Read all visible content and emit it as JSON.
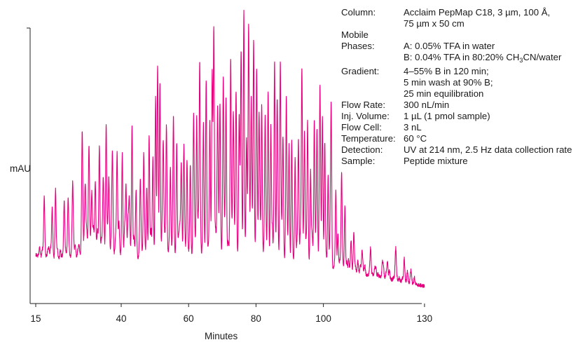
{
  "chart_data": {
    "type": "line",
    "xlabel": "Minutes",
    "ylabel": "mAU",
    "x_ticks": [
      "15",
      "40",
      "60",
      "80",
      "100",
      "130"
    ],
    "xlim": [
      15,
      130
    ],
    "grid": false,
    "series_color": "#e6007e",
    "baseline_points": [
      [
        15,
        24
      ],
      [
        18,
        22
      ],
      [
        22,
        21
      ],
      [
        26,
        23
      ],
      [
        30,
        24
      ],
      [
        35,
        25
      ],
      [
        40,
        24
      ],
      [
        45,
        22
      ],
      [
        50,
        22
      ],
      [
        55,
        23
      ],
      [
        60,
        23
      ],
      [
        65,
        24
      ],
      [
        70,
        23
      ],
      [
        75,
        22
      ],
      [
        80,
        22
      ],
      [
        85,
        21
      ],
      [
        90,
        20
      ],
      [
        95,
        18
      ],
      [
        100,
        17
      ],
      [
        105,
        15
      ],
      [
        110,
        13
      ],
      [
        115,
        11
      ],
      [
        120,
        9
      ],
      [
        125,
        7
      ],
      [
        130,
        5
      ]
    ],
    "peaks": [
      [
        17.5,
        33
      ],
      [
        19.8,
        28
      ],
      [
        20.8,
        41
      ],
      [
        23.3,
        31
      ],
      [
        24.5,
        33
      ],
      [
        25.8,
        43
      ],
      [
        28.6,
        56
      ],
      [
        29.5,
        40
      ],
      [
        30.6,
        58
      ],
      [
        31.4,
        37
      ],
      [
        32.4,
        41
      ],
      [
        33.6,
        60
      ],
      [
        34.7,
        36
      ],
      [
        35.6,
        66
      ],
      [
        36.4,
        44
      ],
      [
        37.4,
        52
      ],
      [
        38.8,
        57
      ],
      [
        40.3,
        48
      ],
      [
        41.4,
        40
      ],
      [
        42.4,
        33
      ],
      [
        43.2,
        67
      ],
      [
        44.4,
        39
      ],
      [
        45.7,
        44
      ],
      [
        46.7,
        58
      ],
      [
        47.6,
        43
      ],
      [
        48.3,
        61
      ],
      [
        49.4,
        44
      ],
      [
        50.2,
        93
      ],
      [
        50.8,
        106
      ],
      [
        51.5,
        94
      ],
      [
        52.5,
        60
      ],
      [
        53.4,
        71
      ],
      [
        54.6,
        46
      ],
      [
        55.5,
        84
      ],
      [
        56.5,
        49
      ],
      [
        57.8,
        52
      ],
      [
        58.6,
        64
      ],
      [
        59.5,
        48
      ],
      [
        60.5,
        54
      ],
      [
        61.5,
        70
      ],
      [
        62.4,
        79
      ],
      [
        63.3,
        118
      ],
      [
        64.4,
        71
      ],
      [
        65.2,
        98
      ],
      [
        66.3,
        76
      ],
      [
        67.0,
        107
      ],
      [
        67.5,
        127
      ],
      [
        68.6,
        83
      ],
      [
        69.3,
        92
      ],
      [
        70.3,
        106
      ],
      [
        71.1,
        85
      ],
      [
        72.5,
        117
      ],
      [
        73.3,
        71
      ],
      [
        74.1,
        95
      ],
      [
        75.0,
        84
      ],
      [
        75.6,
        114
      ],
      [
        76.4,
        148
      ],
      [
        77.2,
        70
      ],
      [
        77.8,
        134
      ],
      [
        78.6,
        93
      ],
      [
        79.3,
        126
      ],
      [
        80.2,
        100
      ],
      [
        80.9,
        84
      ],
      [
        81.7,
        93
      ],
      [
        82.7,
        80
      ],
      [
        83.6,
        90
      ],
      [
        84.4,
        78
      ],
      [
        85.5,
        115
      ],
      [
        86.3,
        80
      ],
      [
        87.2,
        103
      ],
      [
        88.0,
        72
      ],
      [
        89.0,
        97
      ],
      [
        89.8,
        69
      ],
      [
        90.6,
        58
      ],
      [
        91.6,
        58
      ],
      [
        92.6,
        64
      ],
      [
        93.6,
        112
      ],
      [
        94.4,
        79
      ],
      [
        95.3,
        71
      ],
      [
        96.2,
        56
      ],
      [
        97.3,
        88
      ],
      [
        98.1,
        73
      ],
      [
        99.0,
        100
      ],
      [
        99.7,
        80
      ],
      [
        100.4,
        60
      ],
      [
        101.4,
        54
      ],
      [
        102.3,
        91
      ],
      [
        103.7,
        30
      ],
      [
        105.4,
        51
      ],
      [
        106.4,
        33
      ],
      [
        108.2,
        19
      ],
      [
        109.0,
        17
      ],
      [
        111.5,
        8
      ],
      [
        114.0,
        11
      ],
      [
        117.5,
        8
      ],
      [
        119.0,
        10
      ],
      [
        121.5,
        16
      ],
      [
        124.0,
        11
      ],
      [
        127.0,
        4
      ]
    ],
    "spike_seeds": [
      31.5,
      44.8,
      60.8,
      70.7,
      81.3
    ]
  },
  "conditions": {
    "column_label": "Column:",
    "column_value_1": "Acclaim PepMap C18, 3 µm, 100 Å,",
    "column_value_2": "75 µm x 50 cm",
    "mobile_label": "Mobile",
    "phases_label": "Phases:",
    "phase_a": "A: 0.05% TFA in water",
    "phase_b_pre": "B: 0.04% TFA in 80:20% CH",
    "phase_b_sub": "3",
    "phase_b_post": "CN/water",
    "gradient_label": "Gradient:",
    "gradient_1": "4–55% B in 120 min;",
    "gradient_2": "5 min wash at 90% B;",
    "gradient_3": "25 min equilibration",
    "flow_label": "Flow Rate:",
    "flow_value": "300 nL/min",
    "inj_label": "Inj. Volume:",
    "inj_value": "1 µL (1 pmol sample)",
    "cell_label": "Flow Cell:",
    "cell_value": "3 nL",
    "temp_label": "Temperature:",
    "temp_value": "60 °C",
    "detection_label": "Detection:",
    "detection_value": "UV at 214 nm, 2.5 Hz data collection rate",
    "sample_label": "Sample:",
    "sample_value": "Peptide mixture"
  }
}
